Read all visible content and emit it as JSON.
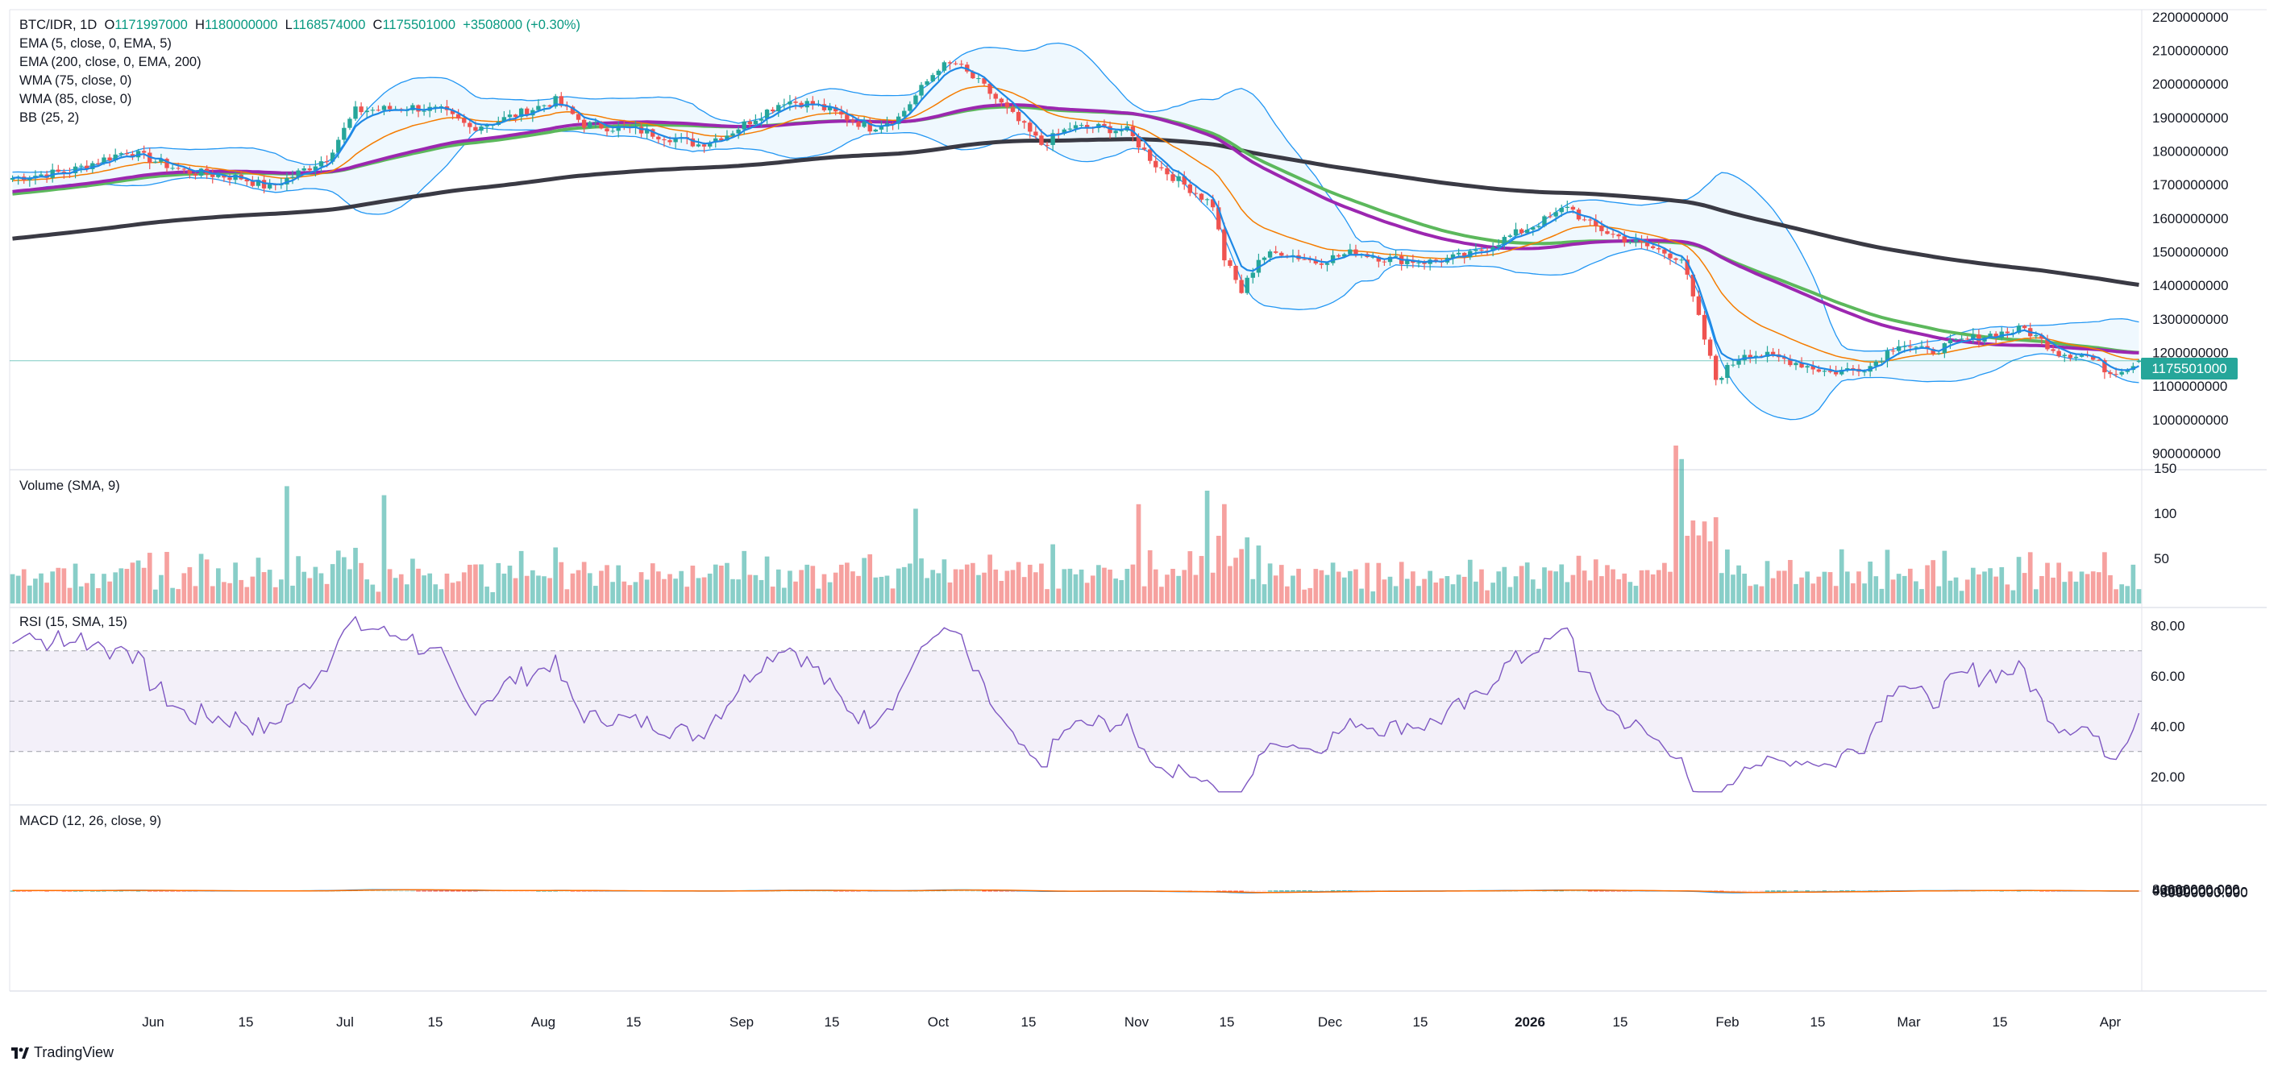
{
  "chart_data": {
    "type": "candlestick",
    "symbol": "BTC/IDR",
    "interval": "1D",
    "ohlc_header": {
      "open_label": "O",
      "open": "1171997000",
      "high_label": "H",
      "high": "1180000000",
      "low_label": "L",
      "low": "1168574000",
      "close_label": "C",
      "close": "1175501000",
      "change": "+3508000 (+0.30%)"
    },
    "last_price_label": "1175501000",
    "indicators": [
      {
        "name": "EMA (5, close, 0, EMA, 5)",
        "color": "#2196f3"
      },
      {
        "name": "EMA (200, close, 0, EMA, 200)",
        "color": "#3a3a44"
      },
      {
        "name": "WMA (75, close, 0)",
        "color": "#9c27b0"
      },
      {
        "name": "WMA (85, close, 0)",
        "color": "#4caf50"
      },
      {
        "name": "BB (25, 2)",
        "color": "#2196f3"
      }
    ],
    "price_axis": {
      "ticks": [
        "2200000000",
        "2100000000",
        "2000000000",
        "1900000000",
        "1800000000",
        "1700000000",
        "1600000000",
        "1500000000",
        "1400000000",
        "1300000000",
        "1200000000",
        "1100000000",
        "1000000000",
        "900000000"
      ]
    },
    "time_axis": [
      "Jun",
      "15",
      "Jul",
      "15",
      "Aug",
      "15",
      "Sep",
      "15",
      "Oct",
      "15",
      "Nov",
      "15",
      "Dec",
      "15",
      "2026",
      "15",
      "Feb",
      "15",
      "Mar",
      "15",
      "Apr"
    ],
    "price_path": [
      [
        0,
        1720
      ],
      [
        10,
        1740
      ],
      [
        20,
        1800
      ],
      [
        30,
        1740
      ],
      [
        40,
        1720
      ],
      [
        45,
        1690
      ],
      [
        55,
        1780
      ],
      [
        60,
        1920
      ],
      [
        70,
        1930
      ],
      [
        75,
        1920
      ],
      [
        80,
        1870
      ],
      [
        85,
        1890
      ],
      [
        95,
        1950
      ],
      [
        100,
        1880
      ],
      [
        110,
        1860
      ],
      [
        120,
        1820
      ],
      [
        125,
        1850
      ],
      [
        135,
        1950
      ],
      [
        140,
        1940
      ],
      [
        150,
        1870
      ],
      [
        155,
        1900
      ],
      [
        162,
        2050
      ],
      [
        165,
        2060
      ],
      [
        170,
        1990
      ],
      [
        180,
        1820
      ],
      [
        185,
        1870
      ],
      [
        190,
        1870
      ],
      [
        195,
        1860
      ],
      [
        200,
        1760
      ],
      [
        205,
        1700
      ],
      [
        210,
        1640
      ],
      [
        212,
        1480
      ],
      [
        215,
        1380
      ],
      [
        218,
        1480
      ],
      [
        222,
        1500
      ],
      [
        228,
        1470
      ],
      [
        235,
        1500
      ],
      [
        240,
        1480
      ],
      [
        248,
        1470
      ],
      [
        255,
        1490
      ],
      [
        265,
        1570
      ],
      [
        270,
        1610
      ],
      [
        272,
        1640
      ],
      [
        275,
        1590
      ],
      [
        280,
        1550
      ],
      [
        287,
        1510
      ],
      [
        292,
        1480
      ],
      [
        295,
        1300
      ],
      [
        298,
        1120
      ],
      [
        303,
        1200
      ],
      [
        310,
        1180
      ],
      [
        318,
        1140
      ],
      [
        325,
        1160
      ],
      [
        330,
        1230
      ],
      [
        335,
        1200
      ],
      [
        340,
        1230
      ],
      [
        345,
        1250
      ],
      [
        352,
        1270
      ],
      [
        358,
        1200
      ],
      [
        363,
        1190
      ],
      [
        367,
        1140
      ],
      [
        372,
        1170
      ]
    ],
    "volume_label": "Volume (SMA, 9)",
    "volume_ticks": [
      "150",
      "100",
      "50"
    ],
    "rsi_label": "RSI (15, SMA, 15)",
    "rsi_ticks": [
      "80.00",
      "60.00",
      "40.00",
      "20.00"
    ],
    "rsi_levels": [
      70,
      50,
      30
    ],
    "macd_label": "MACD (12, 26, close, 9)",
    "macd_ticks": [
      "80000000.000",
      "40000000.000",
      "0.000",
      "−40000000.000",
      "−80000000.000"
    ],
    "colors": {
      "up": "#26a69a",
      "down": "#ef5350",
      "bb": "#2196f3",
      "rsi": "#7e57c2",
      "macd_line": "#2196f3",
      "signal_line": "#ff6d00"
    }
  },
  "branding": {
    "name": "TradingView"
  }
}
